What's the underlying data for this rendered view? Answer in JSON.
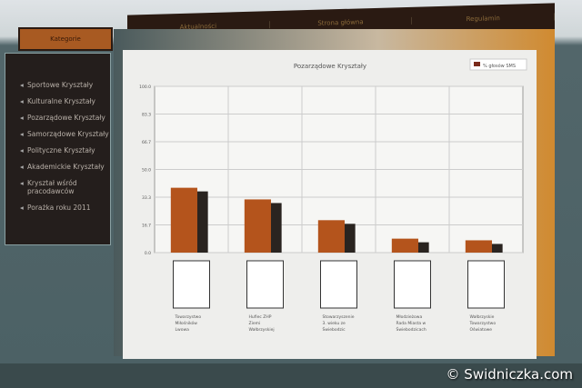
{
  "nav": {
    "items": [
      "Aktualności",
      "Strona główna",
      "Regulamin"
    ]
  },
  "sidebar": {
    "tab": "Kategorie",
    "items": [
      "Sportowe Kryształy",
      "Kulturalne Kryształy",
      "Pozarządowe Kryształy",
      "Samorządowe Kryształy",
      "Polityczne Kryształy",
      "Akademickie Kryształy",
      "Kryształ wśród pracodawców",
      "Porażka roku 2011"
    ]
  },
  "watermark": "© Swidniczka.com",
  "chart_data": {
    "type": "bar",
    "title": "Pozarządowe Kryształy",
    "legend": "% głosów SMS",
    "legend_position": "top-right",
    "bar_color": "#b4541c",
    "grid": true,
    "ylim": [
      0,
      100
    ],
    "yticks": [
      "0.0",
      "16.7",
      "33.3",
      "50.0",
      "66.7",
      "83.3",
      "100.0"
    ],
    "categories": [
      "Towarzystwo Miłośników Lwowa",
      "Hufiec ZHP Ziemi Wałbrzyskiej",
      "Stowarzyszenie 3. wieku ze Świebodzic",
      "Młodzieżowa Rada Miasta w Świebodzicach",
      "Wałbrzyskie Towarzystwo Oświatowe"
    ],
    "values": [
      39,
      32,
      19.5,
      8.4,
      7.4
    ]
  }
}
